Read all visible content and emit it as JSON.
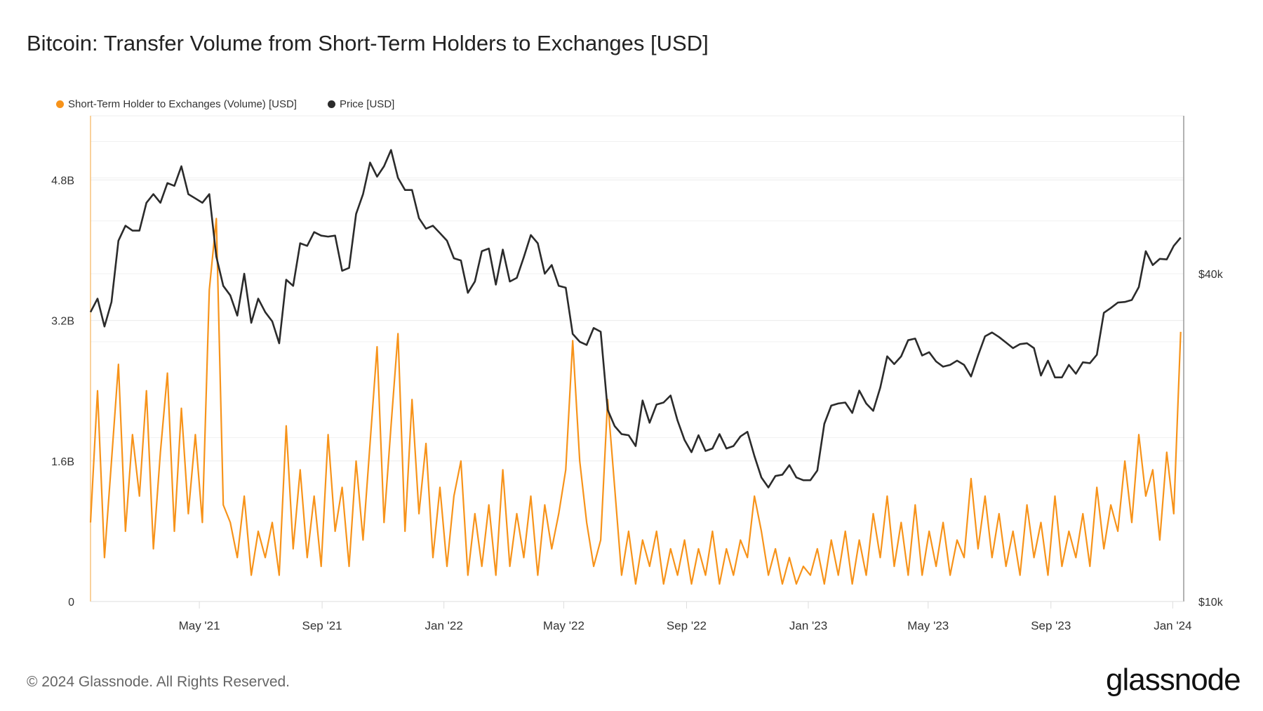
{
  "title": "Bitcoin: Transfer Volume from Short-Term Holders to Exchanges [USD]",
  "footer": "© 2024 Glassnode. All Rights Reserved.",
  "logo_text": "glassnode",
  "chart_data": {
    "type": "line",
    "title": "Bitcoin: Transfer Volume from Short-Term Holders to Exchanges [USD]",
    "legend_position": "top-left",
    "grid": true,
    "x_range": [
      "2021-01-12",
      "2024-01-12"
    ],
    "x_ticks": [
      {
        "date": "2021-05-01",
        "label": "May '21"
      },
      {
        "date": "2021-09-01",
        "label": "Sep '21"
      },
      {
        "date": "2022-01-01",
        "label": "Jan '22"
      },
      {
        "date": "2022-05-01",
        "label": "May '22"
      },
      {
        "date": "2022-09-01",
        "label": "Sep '22"
      },
      {
        "date": "2023-01-01",
        "label": "Jan '23"
      },
      {
        "date": "2023-05-01",
        "label": "May '23"
      },
      {
        "date": "2023-09-01",
        "label": "Sep '23"
      },
      {
        "date": "2024-01-01",
        "label": "Jan '24"
      }
    ],
    "y_left": {
      "scale": "linear",
      "range_billions": [
        0,
        5.53
      ],
      "ticks": [
        {
          "value": 0,
          "label": "0"
        },
        {
          "value": 1.6,
          "label": "1.6B"
        },
        {
          "value": 3.2,
          "label": "3.2B"
        },
        {
          "value": 4.8,
          "label": "4.8B"
        }
      ]
    },
    "y_right": {
      "scale": "log",
      "range": [
        10000,
        78000
      ],
      "ticks": [
        {
          "value": 10000,
          "label": "$10k"
        },
        {
          "value": 40000,
          "label": "$40k"
        }
      ]
    },
    "x": [
      "2021-01-12",
      "2021-01-19",
      "2021-01-26",
      "2021-02-02",
      "2021-02-09",
      "2021-02-16",
      "2021-02-23",
      "2021-03-02",
      "2021-03-09",
      "2021-03-16",
      "2021-03-23",
      "2021-03-30",
      "2021-04-06",
      "2021-04-13",
      "2021-04-20",
      "2021-04-27",
      "2021-05-04",
      "2021-05-11",
      "2021-05-18",
      "2021-05-25",
      "2021-06-01",
      "2021-06-08",
      "2021-06-15",
      "2021-06-22",
      "2021-06-29",
      "2021-07-06",
      "2021-07-13",
      "2021-07-20",
      "2021-07-27",
      "2021-08-03",
      "2021-08-10",
      "2021-08-17",
      "2021-08-24",
      "2021-08-31",
      "2021-09-07",
      "2021-09-14",
      "2021-09-21",
      "2021-09-28",
      "2021-10-05",
      "2021-10-12",
      "2021-10-19",
      "2021-10-26",
      "2021-11-02",
      "2021-11-09",
      "2021-11-16",
      "2021-11-23",
      "2021-11-30",
      "2021-12-07",
      "2021-12-14",
      "2021-12-21",
      "2021-12-28",
      "2022-01-04",
      "2022-01-11",
      "2022-01-18",
      "2022-01-25",
      "2022-02-01",
      "2022-02-08",
      "2022-02-15",
      "2022-02-22",
      "2022-03-01",
      "2022-03-08",
      "2022-03-15",
      "2022-03-22",
      "2022-03-29",
      "2022-04-05",
      "2022-04-12",
      "2022-04-19",
      "2022-04-26",
      "2022-05-03",
      "2022-05-10",
      "2022-05-17",
      "2022-05-24",
      "2022-05-31",
      "2022-06-07",
      "2022-06-14",
      "2022-06-21",
      "2022-06-28",
      "2022-07-05",
      "2022-07-12",
      "2022-07-19",
      "2022-07-26",
      "2022-08-02",
      "2022-08-09",
      "2022-08-16",
      "2022-08-23",
      "2022-08-30",
      "2022-09-06",
      "2022-09-13",
      "2022-09-20",
      "2022-09-27",
      "2022-10-04",
      "2022-10-11",
      "2022-10-18",
      "2022-10-25",
      "2022-11-01",
      "2022-11-08",
      "2022-11-15",
      "2022-11-22",
      "2022-11-29",
      "2022-12-06",
      "2022-12-13",
      "2022-12-20",
      "2022-12-27",
      "2023-01-03",
      "2023-01-10",
      "2023-01-17",
      "2023-01-24",
      "2023-01-31",
      "2023-02-07",
      "2023-02-14",
      "2023-02-21",
      "2023-02-28",
      "2023-03-07",
      "2023-03-14",
      "2023-03-21",
      "2023-03-28",
      "2023-04-04",
      "2023-04-11",
      "2023-04-18",
      "2023-04-25",
      "2023-05-02",
      "2023-05-09",
      "2023-05-16",
      "2023-05-23",
      "2023-05-30",
      "2023-06-06",
      "2023-06-13",
      "2023-06-20",
      "2023-06-27",
      "2023-07-04",
      "2023-07-11",
      "2023-07-18",
      "2023-07-25",
      "2023-08-01",
      "2023-08-08",
      "2023-08-15",
      "2023-08-22",
      "2023-08-29",
      "2023-09-05",
      "2023-09-12",
      "2023-09-19",
      "2023-09-26",
      "2023-10-03",
      "2023-10-10",
      "2023-10-17",
      "2023-10-24",
      "2023-10-31",
      "2023-11-07",
      "2023-11-14",
      "2023-11-21",
      "2023-11-28",
      "2023-12-05",
      "2023-12-12",
      "2023-12-19",
      "2023-12-26",
      "2024-01-02",
      "2024-01-09"
    ],
    "series": [
      {
        "name": "Short-Term Holder to Exchanges (Volume) [USD]",
        "axis": "left",
        "unit": "billion USD",
        "color": "#f7931a",
        "values": [
          0.9,
          2.4,
          0.5,
          1.6,
          2.7,
          0.8,
          1.9,
          1.2,
          2.4,
          0.6,
          1.7,
          2.6,
          0.8,
          2.2,
          1.0,
          1.9,
          0.9,
          3.55,
          4.36,
          1.1,
          0.9,
          0.5,
          1.2,
          0.3,
          0.8,
          0.5,
          0.9,
          0.3,
          2.0,
          0.6,
          1.5,
          0.5,
          1.2,
          0.4,
          1.9,
          0.8,
          1.3,
          0.4,
          1.6,
          0.7,
          1.8,
          2.9,
          0.9,
          2.0,
          3.05,
          0.8,
          2.3,
          1.0,
          1.8,
          0.5,
          1.3,
          0.4,
          1.2,
          1.6,
          0.3,
          1.0,
          0.4,
          1.1,
          0.3,
          1.5,
          0.4,
          1.0,
          0.5,
          1.2,
          0.3,
          1.1,
          0.6,
          1.0,
          1.5,
          2.97,
          1.6,
          0.9,
          0.4,
          0.7,
          2.3,
          1.3,
          0.3,
          0.8,
          0.2,
          0.7,
          0.4,
          0.8,
          0.2,
          0.6,
          0.3,
          0.7,
          0.2,
          0.6,
          0.3,
          0.8,
          0.2,
          0.6,
          0.3,
          0.7,
          0.5,
          1.2,
          0.8,
          0.3,
          0.6,
          0.2,
          0.5,
          0.2,
          0.4,
          0.3,
          0.6,
          0.2,
          0.7,
          0.3,
          0.8,
          0.2,
          0.7,
          0.3,
          1.0,
          0.5,
          1.2,
          0.4,
          0.9,
          0.3,
          1.1,
          0.3,
          0.8,
          0.4,
          0.9,
          0.3,
          0.7,
          0.5,
          1.4,
          0.6,
          1.2,
          0.5,
          1.0,
          0.4,
          0.8,
          0.3,
          1.1,
          0.5,
          0.9,
          0.3,
          1.2,
          0.4,
          0.8,
          0.5,
          1.0,
          0.4,
          1.3,
          0.6,
          1.1,
          0.8,
          1.6,
          0.9,
          1.9,
          1.2,
          1.5,
          0.7,
          1.7,
          1.0,
          3.07
        ]
      },
      {
        "name": "Price [USD]",
        "axis": "right",
        "unit": "thousand USD",
        "color": "#2b2b2b",
        "values": [
          34,
          36,
          32,
          35.5,
          46,
          49,
          48,
          48,
          54,
          56,
          54,
          58.7,
          58,
          63,
          56,
          55,
          54,
          56,
          43,
          38,
          36.5,
          33.5,
          40,
          32.5,
          36,
          34,
          32.7,
          29.8,
          39,
          38,
          45.5,
          45,
          47.7,
          47,
          46.8,
          47,
          40.5,
          41,
          51.5,
          56,
          64,
          60.3,
          63,
          67.5,
          60,
          57,
          57,
          50.6,
          48.4,
          49,
          47.5,
          46,
          42.7,
          42.3,
          36.9,
          38.7,
          44,
          44.5,
          38.2,
          44.3,
          38.7,
          39.3,
          42.9,
          47.1,
          45.5,
          40,
          41.5,
          38,
          37.7,
          31,
          30,
          29.6,
          31.8,
          31.3,
          22.5,
          21,
          20.3,
          20.2,
          19.3,
          23.4,
          21.3,
          23,
          23.2,
          23.9,
          21.5,
          19.8,
          18.8,
          20.2,
          18.9,
          19.1,
          20.3,
          19.1,
          19.3,
          20.1,
          20.5,
          18.5,
          16.9,
          16.2,
          17,
          17.1,
          17.8,
          16.9,
          16.7,
          16.7,
          17.4,
          21.2,
          22.9,
          23.1,
          23.2,
          22.2,
          24.4,
          23.1,
          22.4,
          24.7,
          28.2,
          27.3,
          28.2,
          30.2,
          30.4,
          28.3,
          28.7,
          27.6,
          27,
          27.2,
          27.7,
          27.2,
          25.9,
          28.3,
          30.7,
          31.2,
          30.6,
          29.9,
          29.2,
          29.7,
          29.8,
          29.2,
          26,
          27.7,
          25.8,
          25.8,
          27.2,
          26.2,
          27.5,
          27.4,
          28.4,
          33.9,
          34.6,
          35.4,
          35.5,
          35.8,
          37.8,
          44,
          41.5,
          42.6,
          42.5,
          45,
          46.6
        ]
      }
    ]
  }
}
